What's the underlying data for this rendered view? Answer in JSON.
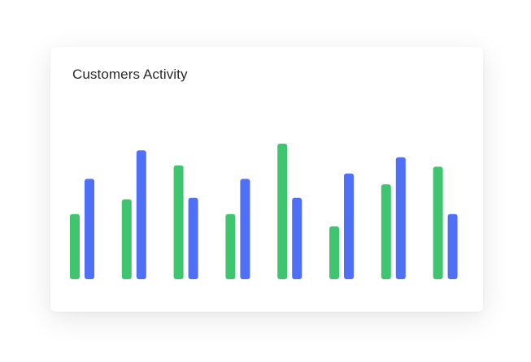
{
  "card": {
    "title": "Customers Activity"
  },
  "colors": {
    "series_a": "#3fc46f",
    "series_b": "#4f70f6"
  },
  "chart_data": {
    "type": "bar",
    "title": "Customers Activity",
    "xlabel": "",
    "ylabel": "",
    "ylim": [
      0,
      100
    ],
    "grid": false,
    "legend": "none",
    "categories": [
      "",
      "",
      "",
      "",
      "",
      "",
      "",
      ""
    ],
    "series": [
      {
        "color": "#3fc46f",
        "values": [
          48,
          59,
          84,
          48,
          100,
          39,
          70,
          83
        ]
      },
      {
        "color": "#4f70f6",
        "values": [
          74,
          95,
          60,
          74,
          60,
          78,
          90,
          48
        ]
      }
    ]
  }
}
